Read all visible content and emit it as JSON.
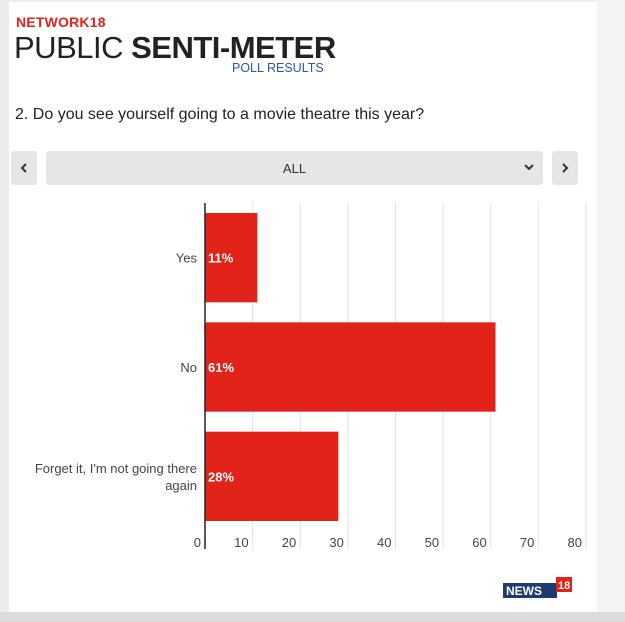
{
  "brand": "NETWORK18",
  "title_light": "PUBLIC ",
  "title_bold": "SENTI-METER",
  "subtitle": "POLL RESULTS",
  "question": "2. Do you see yourself going to a movie theatre this year?",
  "filter": {
    "selected": "ALL"
  },
  "icons": {
    "prev": "chevron-left-icon",
    "next": "chevron-right-icon",
    "dropdown": "chevron-down-icon"
  },
  "colors": {
    "accent": "#e2231a",
    "link": "#2b57a8",
    "control_bg": "#e6e6e6"
  },
  "logo": {
    "text": "NEWS",
    "number": "18"
  },
  "chart_data": {
    "type": "bar",
    "orientation": "horizontal",
    "categories": [
      "Yes",
      "No",
      "Forget it, I'm not going there again"
    ],
    "category_lines": [
      [
        "Yes"
      ],
      [
        "No"
      ],
      [
        "Forget it, I'm not going there",
        "again"
      ]
    ],
    "values": [
      11,
      61,
      28
    ],
    "value_labels": [
      "11%",
      "61%",
      "28%"
    ],
    "xlim": [
      0,
      80
    ],
    "xticks": [
      0,
      10,
      20,
      30,
      40,
      50,
      60,
      70,
      80
    ],
    "grid": true,
    "bar_color": "#e2231a"
  }
}
